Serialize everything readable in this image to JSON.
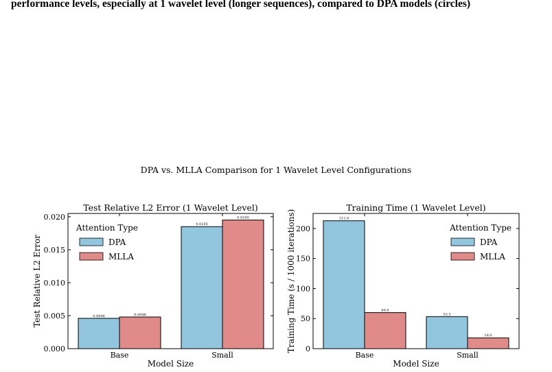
{
  "caption": "performance levels, especially at 1 wavelet level (longer sequences), compared to DPA models (circles)",
  "figure_title": "DPA vs. MLLA Comparison for 1 Wavelet Level Configurations",
  "colors": {
    "DPA": "#92c5de",
    "MLLA": "#e08a8a"
  },
  "chart_data": [
    {
      "type": "bar",
      "title": "Test Relative L2 Error (1 Wavelet Level)",
      "xlabel": "Model Size",
      "ylabel": "Test Relative L2 Error",
      "categories": [
        "Base",
        "Small"
      ],
      "series": [
        {
          "name": "DPA",
          "values": [
            0.0046,
            0.0185
          ],
          "labels": [
            "0.0046",
            "0.0185"
          ]
        },
        {
          "name": "MLLA",
          "values": [
            0.0048,
            0.0195
          ],
          "labels": [
            "0.0048",
            "0.0195"
          ]
        }
      ],
      "ylim": [
        0,
        0.0205
      ],
      "yticks": [
        0.0,
        0.005,
        0.01,
        0.015,
        0.02
      ],
      "ytick_labels": [
        "0.000",
        "0.005",
        "0.010",
        "0.015",
        "0.020"
      ],
      "legend": {
        "title": "Attention Type",
        "position": "upper-left"
      },
      "grid": false
    },
    {
      "type": "bar",
      "title": "Training Time (1 Wavelet Level)",
      "xlabel": "Model Size",
      "ylabel": "Training Time (s / 1000 iterations)",
      "categories": [
        "Base",
        "Small"
      ],
      "series": [
        {
          "name": "DPA",
          "values": [
            212.8,
            53.3
          ],
          "labels": [
            "212.8",
            "53.3"
          ]
        },
        {
          "name": "MLLA",
          "values": [
            60.0,
            18.0
          ],
          "labels": [
            "60.0",
            "18.0"
          ]
        }
      ],
      "ylim": [
        0,
        225
      ],
      "yticks": [
        0,
        50,
        100,
        150,
        200
      ],
      "ytick_labels": [
        "0",
        "50",
        "100",
        "150",
        "200"
      ],
      "legend": {
        "title": "Attention Type",
        "position": "upper-right"
      },
      "grid": false
    }
  ]
}
